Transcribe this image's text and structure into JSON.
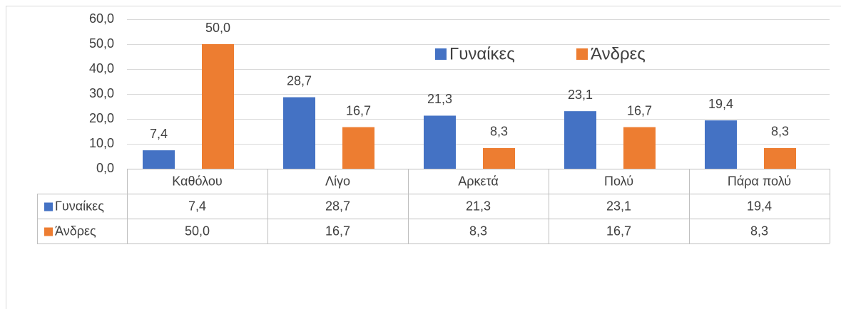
{
  "chart_data": {
    "type": "bar",
    "categories": [
      "Καθόλου",
      "Λίγο",
      "Αρκετά",
      "Πολύ",
      "Πάρα πολύ"
    ],
    "series": [
      {
        "name": "Γυναίκες",
        "color": "#4472c4",
        "values": [
          7.4,
          28.7,
          21.3,
          23.1,
          19.4
        ],
        "value_labels": [
          "7,4",
          "28,7",
          "21,3",
          "23,1",
          "19,4"
        ]
      },
      {
        "name": "Άνδρες",
        "color": "#ed7d31",
        "values": [
          50.0,
          16.7,
          8.3,
          16.7,
          8.3
        ],
        "value_labels": [
          "50,0",
          "16,7",
          "8,3",
          "16,7",
          "8,3"
        ]
      }
    ],
    "ylim": [
      0,
      60
    ],
    "yticks": [
      {
        "value": 0,
        "label": "0,0"
      },
      {
        "value": 10,
        "label": "10,0"
      },
      {
        "value": 20,
        "label": "20,0"
      },
      {
        "value": 30,
        "label": "30,0"
      },
      {
        "value": 40,
        "label": "40,0"
      },
      {
        "value": 50,
        "label": "50,0"
      },
      {
        "value": 60,
        "label": "60,0"
      }
    ],
    "grid": true,
    "legend": "top-right",
    "data_table": true
  }
}
